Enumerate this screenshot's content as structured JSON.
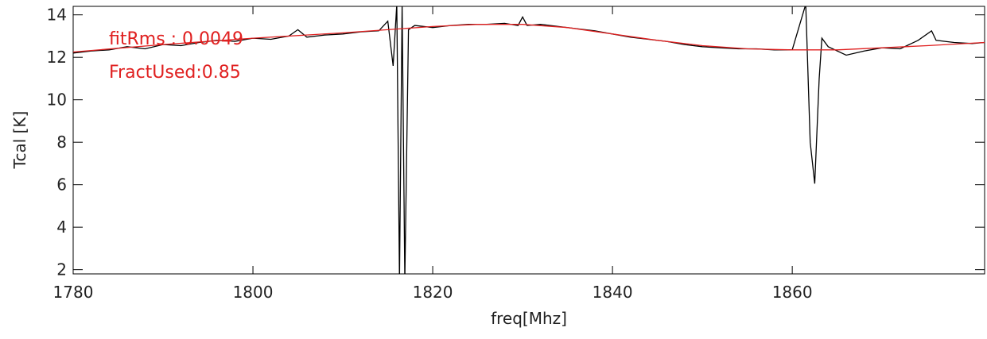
{
  "chart_data": {
    "type": "line",
    "xlabel": "freq[Mhz]",
    "ylabel": "Tcal [K]",
    "annotations": [
      "fitRms     : 0.0049",
      "FractUsed:0.85"
    ],
    "xlim": [
      1780,
      1881.4
    ],
    "ylim": [
      1.8,
      14.4
    ],
    "xticks": [
      1780,
      1800,
      1820,
      1840,
      1860
    ],
    "yticks": [
      2,
      4,
      6,
      8,
      10,
      12,
      14
    ],
    "series": [
      {
        "color": "#000000",
        "x": [
          1780,
          1782,
          1784,
          1786,
          1788,
          1790,
          1792,
          1794,
          1796,
          1798,
          1800,
          1802,
          1804,
          1805,
          1806,
          1808,
          1810,
          1812,
          1814,
          1815,
          1815.6,
          1816,
          1816.3,
          1816.6,
          1816.9,
          1817.3,
          1818,
          1820,
          1822,
          1824,
          1826,
          1828,
          1829.5,
          1830,
          1830.5,
          1832,
          1834,
          1836,
          1838,
          1840,
          1842,
          1844,
          1846,
          1848,
          1850,
          1852,
          1854,
          1856,
          1858,
          1860,
          1861.5,
          1862,
          1862.5,
          1863,
          1863.3,
          1864,
          1866,
          1868,
          1870,
          1872,
          1874,
          1875.5,
          1876,
          1878,
          1880,
          1881.4
        ],
        "values": [
          12.2,
          12.3,
          12.35,
          12.5,
          12.4,
          12.6,
          12.55,
          12.7,
          12.8,
          12.75,
          12.9,
          12.85,
          13.0,
          13.3,
          12.95,
          13.05,
          13.1,
          13.2,
          13.25,
          13.7,
          11.6,
          14.5,
          1.5,
          14.5,
          1.5,
          13.3,
          13.5,
          13.4,
          13.5,
          13.55,
          13.55,
          13.6,
          13.5,
          13.9,
          13.5,
          13.55,
          13.45,
          13.35,
          13.25,
          13.1,
          12.95,
          12.85,
          12.75,
          12.6,
          12.5,
          12.45,
          12.4,
          12.4,
          12.35,
          12.35,
          14.5,
          8,
          6.05,
          11,
          12.9,
          12.5,
          12.1,
          12.3,
          12.45,
          12.4,
          12.8,
          13.25,
          12.8,
          12.7,
          12.65,
          12.7
        ]
      },
      {
        "color": "#e02020",
        "x": [
          1780,
          1790,
          1800,
          1810,
          1815,
          1820,
          1825,
          1830,
          1835,
          1840,
          1845,
          1850,
          1855,
          1860,
          1865,
          1870,
          1875,
          1881.4
        ],
        "values": [
          12.25,
          12.6,
          12.9,
          13.15,
          13.3,
          13.45,
          13.55,
          13.55,
          13.4,
          13.1,
          12.8,
          12.55,
          12.4,
          12.35,
          12.35,
          12.45,
          12.55,
          12.7
        ]
      }
    ]
  }
}
